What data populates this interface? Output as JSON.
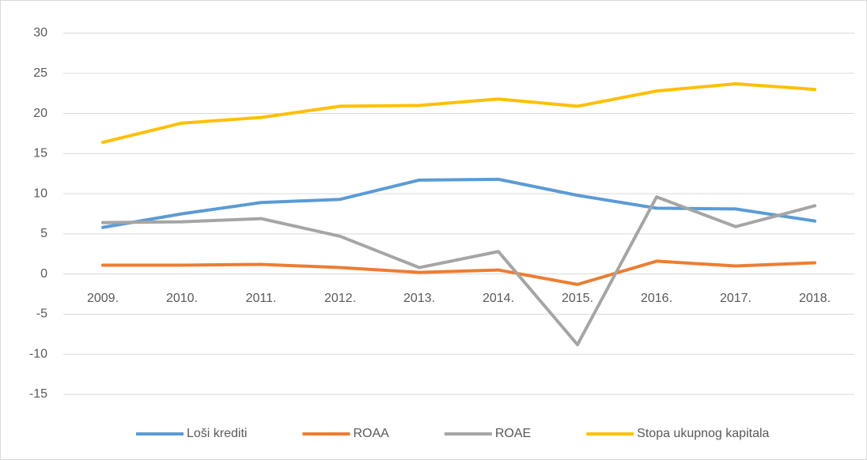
{
  "chart_data": {
    "type": "line",
    "categories": [
      "2009.",
      "2010.",
      "2011.",
      "2012.",
      "2013.",
      "2014.",
      "2015.",
      "2016.",
      "2017.",
      "2018."
    ],
    "series": [
      {
        "name": "Loši krediti",
        "color": "#5b9bd5",
        "values": [
          5.8,
          7.5,
          8.9,
          9.3,
          11.7,
          11.8,
          9.8,
          8.2,
          8.1,
          6.6
        ]
      },
      {
        "name": "ROAA",
        "color": "#ed7d31",
        "values": [
          1.1,
          1.1,
          1.2,
          0.8,
          0.2,
          0.5,
          -1.3,
          1.6,
          1.0,
          1.4
        ]
      },
      {
        "name": "ROAE",
        "color": "#a5a5a5",
        "values": [
          6.4,
          6.5,
          6.9,
          4.7,
          0.8,
          2.8,
          -8.8,
          9.6,
          5.9,
          8.5
        ]
      },
      {
        "name": "Stopa ukupnog kapitala",
        "color": "#ffc000",
        "values": [
          16.4,
          18.8,
          19.5,
          20.9,
          21.0,
          21.8,
          20.9,
          22.8,
          23.7,
          23.0
        ]
      }
    ],
    "ylim": [
      -15,
      30
    ],
    "yticks": [
      -15,
      -10,
      -5,
      0,
      5,
      10,
      15,
      20,
      25,
      30
    ],
    "grid": true,
    "legend": "bottom"
  }
}
